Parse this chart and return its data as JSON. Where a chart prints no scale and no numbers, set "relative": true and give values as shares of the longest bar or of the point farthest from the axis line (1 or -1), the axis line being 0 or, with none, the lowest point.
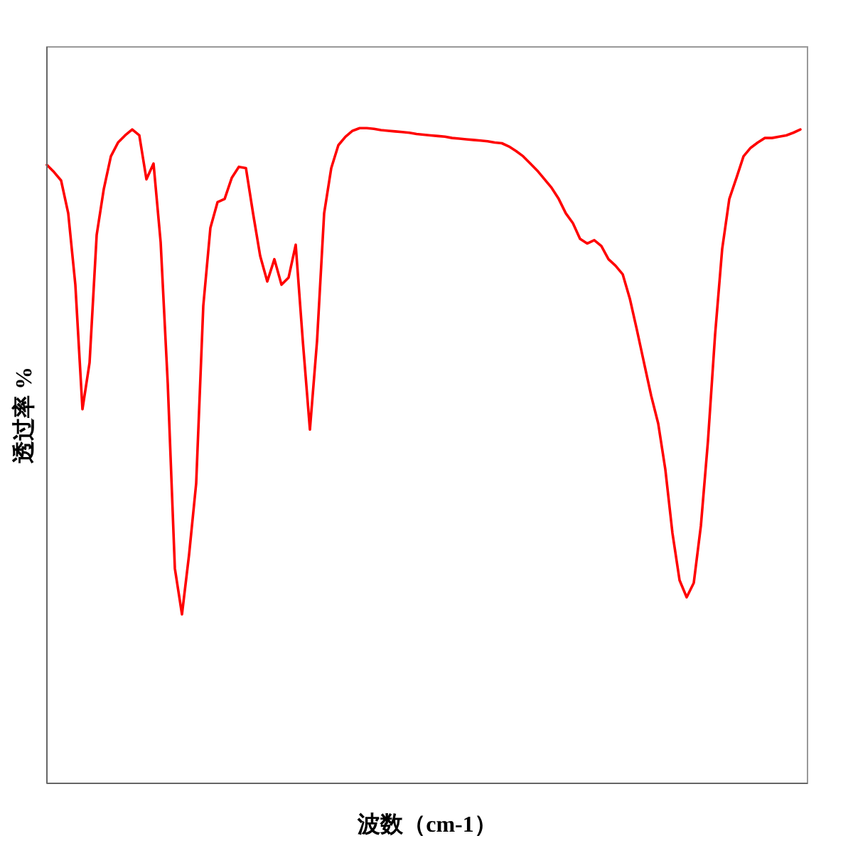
{
  "chart_data": {
    "type": "line",
    "relative": true,
    "xlabel": "波数（cm-1）",
    "ylabel": "透过率 %",
    "categories": [
      null,
      null,
      null,
      null,
      null,
      null,
      null,
      null,
      null,
      null,
      null,
      null,
      null,
      null,
      null,
      null,
      null,
      null,
      null,
      null,
      null,
      null,
      null,
      null,
      null,
      null,
      null,
      null,
      null,
      null,
      null,
      null,
      null,
      null,
      null,
      null,
      null,
      null,
      null,
      null,
      null,
      null,
      null,
      null,
      null,
      null,
      null,
      null,
      null,
      null,
      null,
      null,
      null,
      null,
      null,
      null,
      null,
      null,
      null,
      null,
      null,
      null,
      null,
      null,
      null,
      null,
      null,
      null,
      null,
      null,
      null,
      null,
      null,
      null,
      null,
      null,
      null,
      null,
      null,
      null,
      null,
      null,
      null,
      null,
      null,
      null,
      null,
      null,
      null,
      null,
      null,
      null,
      null,
      null,
      null,
      null,
      null,
      null,
      null,
      null,
      null,
      null,
      null,
      null,
      null,
      null,
      null
    ],
    "series": [
      {
        "color": "#ff0000",
        "values": [
          0.944,
          0.933,
          0.92,
          0.87,
          0.761,
          0.571,
          0.642,
          0.837,
          0.907,
          0.957,
          0.978,
          0.989,
          0.998,
          0.989,
          0.922,
          0.946,
          0.826,
          0.61,
          0.328,
          0.258,
          0.349,
          0.458,
          0.729,
          0.848,
          0.887,
          0.892,
          0.924,
          0.941,
          0.939,
          0.87,
          0.805,
          0.766,
          0.8,
          0.761,
          0.772,
          0.822,
          0.675,
          0.54,
          0.675,
          0.87,
          0.939,
          0.974,
          0.987,
          0.996,
          1.0,
          1.0,
          0.999,
          0.997,
          0.996,
          0.995,
          0.994,
          0.993,
          0.991,
          0.99,
          0.989,
          0.988,
          0.987,
          0.985,
          0.984,
          0.983,
          0.982,
          0.981,
          0.98,
          0.978,
          0.977,
          0.972,
          0.965,
          0.957,
          0.946,
          0.935,
          0.922,
          0.909,
          0.892,
          0.87,
          0.855,
          0.831,
          0.824,
          0.829,
          0.82,
          0.8,
          0.79,
          0.777,
          0.74,
          0.692,
          0.642,
          0.592,
          0.549,
          0.479,
          0.382,
          0.31,
          0.284,
          0.306,
          0.393,
          0.523,
          0.685,
          0.816,
          0.892,
          0.924,
          0.957,
          0.97,
          0.978,
          0.985,
          0.985,
          0.987,
          0.989,
          0.993,
          0.998
        ]
      }
    ]
  }
}
